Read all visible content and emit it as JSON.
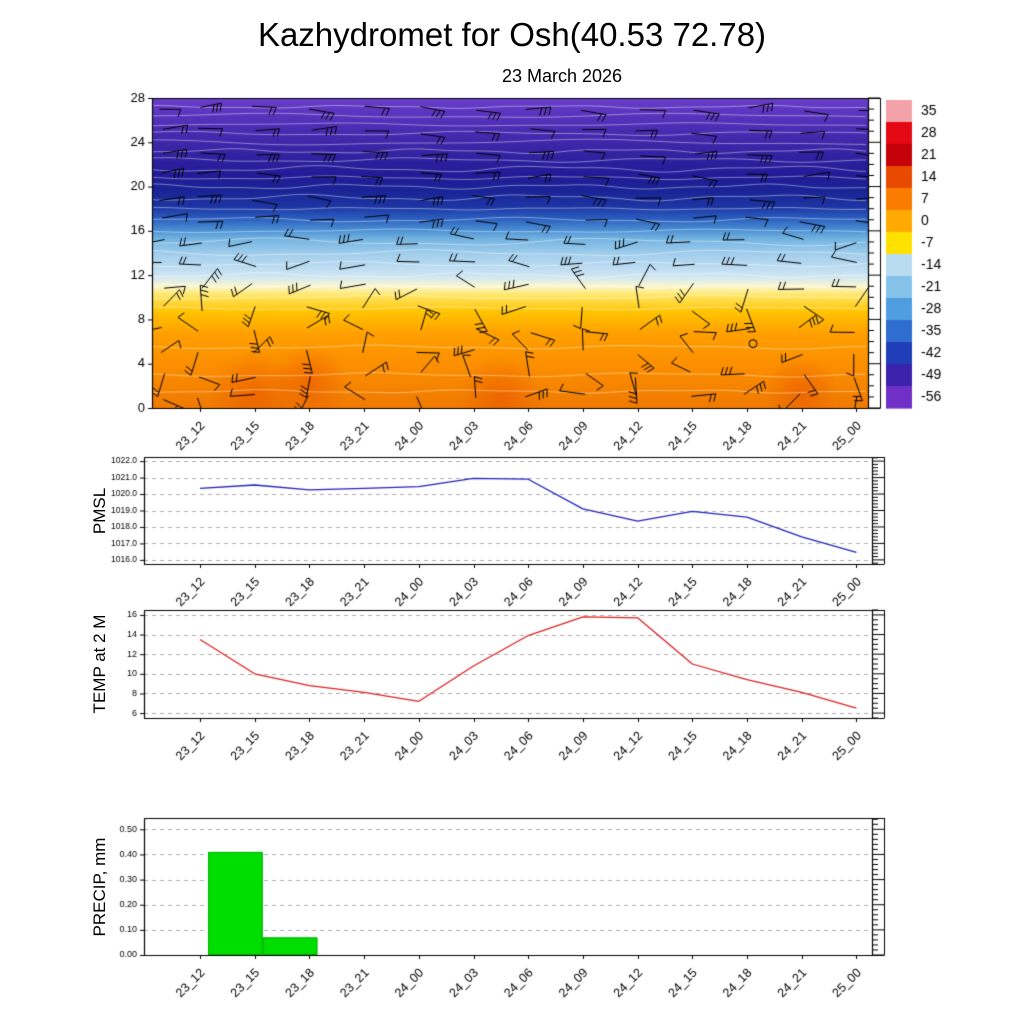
{
  "title": "Kazhydromet for Osh(40.53 72.78)",
  "subtitle": "23 March 2026",
  "time_labels": [
    "23_12",
    "23_15",
    "23_18",
    "23_21",
    "24_00",
    "24_03",
    "24_06",
    "24_09",
    "24_12",
    "24_15",
    "24_18",
    "24_21",
    "25_00"
  ],
  "chart_data": [
    {
      "name": "temperature-height-cross-section",
      "type": "heatmap",
      "x_labels": [
        "23_12",
        "23_15",
        "23_18",
        "23_21",
        "24_00",
        "24_03",
        "24_06",
        "24_09",
        "24_12",
        "24_15",
        "24_18",
        "24_21",
        "25_00"
      ],
      "y_ticks": [
        0,
        4,
        8,
        12,
        16,
        20,
        24,
        28
      ],
      "ylim": [
        0,
        28
      ],
      "colorbar_tick_labels": [
        "35",
        "28",
        "21",
        "14",
        "7",
        "0",
        "-7",
        "-14",
        "-21",
        "-28",
        "-35",
        "-42",
        "-49",
        "-56"
      ],
      "colorbar_colors": [
        "#f2a2a8",
        "#e40812",
        "#c40008",
        "#e84a00",
        "#fa7c00",
        "#ffaa00",
        "#ffe100",
        "#b8dcf2",
        "#84c2ea",
        "#4f9ee0",
        "#2f6ed0",
        "#1f3eb8",
        "#3a22aa",
        "#7030c8"
      ],
      "gradient_stops": [
        [
          0,
          "#ef7a00"
        ],
        [
          0.12,
          "#fb8c00"
        ],
        [
          0.24,
          "#ffa000"
        ],
        [
          0.31,
          "#ffc400"
        ],
        [
          0.365,
          "#ffe76a"
        ],
        [
          0.392,
          "#fcf7d0"
        ],
        [
          0.425,
          "#cfe6f4"
        ],
        [
          0.5,
          "#9fcdec"
        ],
        [
          0.545,
          "#74b4e2"
        ],
        [
          0.575,
          "#4a8ed2"
        ],
        [
          0.61,
          "#2b60c0"
        ],
        [
          0.65,
          "#1d35a4"
        ],
        [
          0.7,
          "#1a2496"
        ],
        [
          0.755,
          "#221b97"
        ],
        [
          0.82,
          "#3423a2"
        ],
        [
          0.9,
          "#4b2cb2"
        ],
        [
          1,
          "#6a3ecb"
        ]
      ],
      "wind_barbs": {
        "columns": 14,
        "rows": 14,
        "color": "#000000"
      },
      "contour_color": "#ffffff",
      "calm_marker": {
        "x_label": "24_18",
        "height": 6
      }
    },
    {
      "name": "pmsl",
      "type": "line",
      "ylabel": "PMSL",
      "x_labels": [
        "23_12",
        "23_15",
        "23_18",
        "23_21",
        "24_00",
        "24_03",
        "24_06",
        "24_09",
        "24_12",
        "24_15",
        "24_18",
        "24_21",
        "25_00"
      ],
      "values": [
        1020.35,
        1020.55,
        1020.25,
        1020.35,
        1020.45,
        1020.95,
        1020.9,
        1019.1,
        1018.35,
        1018.95,
        1018.6,
        1017.4,
        1016.45
      ],
      "y_ticks": [
        1016,
        1017,
        1018,
        1019,
        1020,
        1021,
        1022
      ],
      "y_tick_labels": [
        "1016.0",
        "1017.0",
        "1018.0",
        "1019.0",
        "1020.0",
        "1021.0",
        "1022.0"
      ],
      "ylim": [
        1015.75,
        1022.25
      ],
      "line_color": "#2222bb"
    },
    {
      "name": "temp-2m",
      "type": "line",
      "ylabel": "TEMP at 2 M",
      "x_labels": [
        "23_12",
        "23_15",
        "23_18",
        "23_21",
        "24_00",
        "24_03",
        "24_06",
        "24_09",
        "24_12",
        "24_15",
        "24_18",
        "24_21",
        "25_00"
      ],
      "values": [
        13.5,
        10,
        8.8,
        8.1,
        7.2,
        10.8,
        13.9,
        15.8,
        15.7,
        11,
        9.4,
        8.1,
        6.5
      ],
      "y_ticks": [
        6,
        8,
        10,
        12,
        14,
        16
      ],
      "y_tick_labels": [
        "6",
        "8",
        "10",
        "12",
        "14",
        "16"
      ],
      "ylim": [
        5.5,
        16.5
      ],
      "line_color": "#dd2222"
    },
    {
      "name": "precip",
      "type": "bar",
      "ylabel": "PRECIP, mm",
      "x_labels": [
        "23_12",
        "23_15",
        "23_18",
        "23_21",
        "24_00",
        "24_03",
        "24_06",
        "24_09",
        "24_12",
        "24_15",
        "24_18",
        "24_21",
        "25_00"
      ],
      "interval_values": [
        0.41,
        0.07,
        0,
        0,
        0,
        0,
        0,
        0,
        0,
        0,
        0,
        0
      ],
      "y_ticks": [
        0,
        0.1,
        0.2,
        0.3,
        0.4,
        0.5
      ],
      "y_tick_labels": [
        "0.00",
        "0.10",
        "0.20",
        "0.30",
        "0.40",
        "0.50"
      ],
      "ylim": [
        0,
        0.545
      ],
      "bar_color": "#00dd00"
    }
  ]
}
